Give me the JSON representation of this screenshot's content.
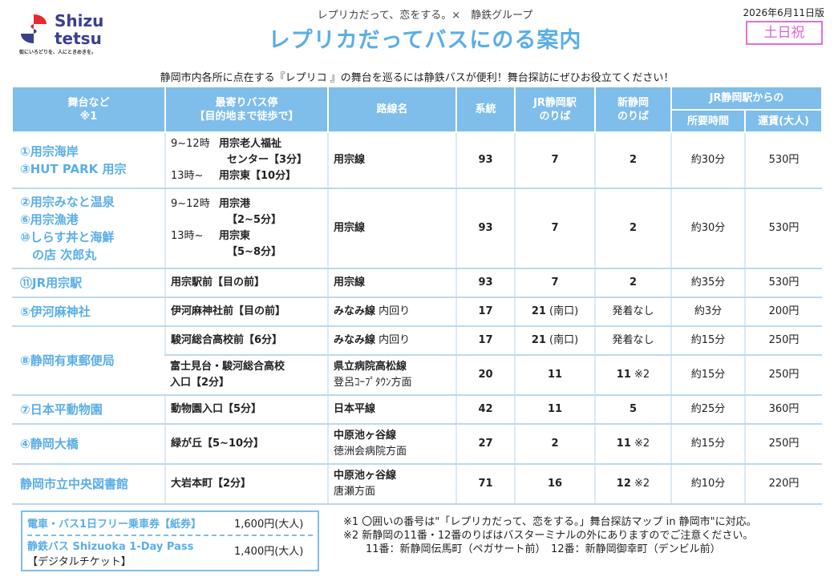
{
  "header": {
    "logo_line1": "Shizu",
    "logo_line2": "tetsu",
    "logo_tagline": "街にいろどりを、人にときめきを。",
    "subtitle": "レプリカだって、恋をする。×　静鉄グループ",
    "title": "レプリカだってバスにのる案内",
    "edition": "2026年6月11日版",
    "badge": "土日祝"
  },
  "intro": "静岡市内各所に点在する『レプリコ 』の舞台を巡るには静鉄バスが便利！舞台探訪にぜひお役立てください！",
  "columns": {
    "place": "舞台など\n※1",
    "stop": "最寄りバス停\n【目的地まで徒歩で】",
    "route": "路線名",
    "system": "系統",
    "jr_platform": "JR静岡駅\nのりば",
    "shin_platform": "新静岡\nのりば",
    "from_jr": "JR静岡駅からの",
    "time": "所要時間",
    "fare": "運賃(大人)"
  },
  "rows": [
    {
      "places": [
        "①用宗海岸",
        "③HUT PARK 用宗"
      ],
      "stop_lines": [
        {
          "time": "9~12時",
          "name": "用宗老人福祉"
        },
        {
          "time": "",
          "name": "センター【3分】",
          "indent": "ind2"
        },
        {
          "time": "13時~",
          "name": "用宗東【10分】"
        }
      ],
      "route": "用宗線",
      "route_sub": "",
      "system": "93",
      "jr": "7",
      "jr_sub": "",
      "shin": "2",
      "shin_note": "",
      "time": "約30分",
      "fare": "530円"
    },
    {
      "places": [
        "②用宗みなと温泉",
        "⑥用宗漁港",
        "⑩しらす丼と海鮮",
        "　の店 次郎丸"
      ],
      "stop_lines": [
        {
          "time": "9~12時",
          "name": "用宗港"
        },
        {
          "time": "",
          "name": "【2~5分】",
          "indent": "ind2"
        },
        {
          "time": "13時~",
          "name": "用宗東"
        },
        {
          "time": "",
          "name": "【5~8分】",
          "indent": "ind2"
        }
      ],
      "route": "用宗線",
      "route_sub": "",
      "system": "93",
      "jr": "7",
      "jr_sub": "",
      "shin": "2",
      "shin_note": "",
      "time": "約30分",
      "fare": "530円"
    },
    {
      "places": [
        "⑪JR用宗駅"
      ],
      "stop_lines": [
        {
          "time": "",
          "name": "用宗駅前【目の前】"
        }
      ],
      "route": "用宗線",
      "route_sub": "",
      "system": "93",
      "jr": "7",
      "jr_sub": "",
      "shin": "2",
      "shin_note": "",
      "time": "約35分",
      "fare": "530円"
    },
    {
      "places": [
        "⑤伊河麻神社"
      ],
      "stop_lines": [
        {
          "time": "",
          "name": "伊河麻神社前【目の前】"
        }
      ],
      "route": "みなみ線",
      "route_sub": " 内回り",
      "system": "17",
      "jr": "21",
      "jr_sub": " (南口)",
      "shin": "発着なし",
      "shin_note": "",
      "time": "約3分",
      "fare": "200円"
    },
    {
      "places": [
        "⑧静岡有東郵便局"
      ],
      "stop_lines": [
        {
          "time": "",
          "name": "駿河総合高校前【6分】"
        }
      ],
      "route": "みなみ線",
      "route_sub": " 内回り",
      "system": "17",
      "jr": "21",
      "jr_sub": " (南口)",
      "shin": "発着なし",
      "shin_note": "",
      "time": "約15分",
      "fare": "250円"
    },
    {
      "places": [],
      "stop_lines": [
        {
          "time": "",
          "name": "富士見台・駿河総合高校"
        },
        {
          "time": "",
          "name": "入口【2分】"
        }
      ],
      "route": "県立病院高松線",
      "route_sub": "登呂ｺｰﾌﾟﾀｳﾝ方面",
      "system": "20",
      "jr": "11",
      "jr_sub": "",
      "shin": "11",
      "shin_note": " ※2",
      "time": "約15分",
      "fare": "250円"
    },
    {
      "places": [
        "⑦日本平動物園"
      ],
      "stop_lines": [
        {
          "time": "",
          "name": "動物園入口【5分】"
        }
      ],
      "route": "日本平線",
      "route_sub": "",
      "system": "42",
      "jr": "11",
      "jr_sub": "",
      "shin": "5",
      "shin_note": "",
      "time": "約25分",
      "fare": "360円"
    },
    {
      "places": [
        "④静岡大橋"
      ],
      "stop_lines": [
        {
          "time": "",
          "name": "緑が丘【5~10分】"
        }
      ],
      "route": "中原池ヶ谷線",
      "route_sub": "徳洲会病院方面",
      "system": "27",
      "jr": "2",
      "jr_sub": "",
      "shin": "11",
      "shin_note": " ※2",
      "time": "約15分",
      "fare": "250円"
    },
    {
      "places": [
        "静岡市立中央図書館"
      ],
      "stop_lines": [
        {
          "time": "",
          "name": "大岩本町【2分】"
        }
      ],
      "route": "中原池ヶ谷線",
      "route_sub": "唐瀬方面",
      "system": "71",
      "jr": "16",
      "jr_sub": "",
      "shin": "12",
      "shin_note": " ※2",
      "time": "約10分",
      "fare": "220円"
    }
  ],
  "pass": {
    "line1_label": "電車・バス1日フリー乗車券",
    "line1_kind": "【紙券】",
    "line1_price": "1,600円(大人)",
    "line2_label": "静鉄バス Shizuoka 1-Day Pass",
    "line2_kind": "【デジタルチケット】",
    "line2_price": "1,400円(大人)"
  },
  "notes": [
    "※1 〇囲いの番号は\"「レプリカだって、恋をする。」舞台探訪マップ in 静岡市\"に対応。",
    "※2 新静岡の11番・12番のりばはバスターミナルの外にありますのでご注意ください。",
    "11番：新静岡伝馬町（ペガサート前）　12番：新静岡御幸町（デンビル前）"
  ],
  "colors": {
    "accent": "#5aaee6",
    "header_bg": "#7fbdea",
    "badge": "#e060d0"
  }
}
